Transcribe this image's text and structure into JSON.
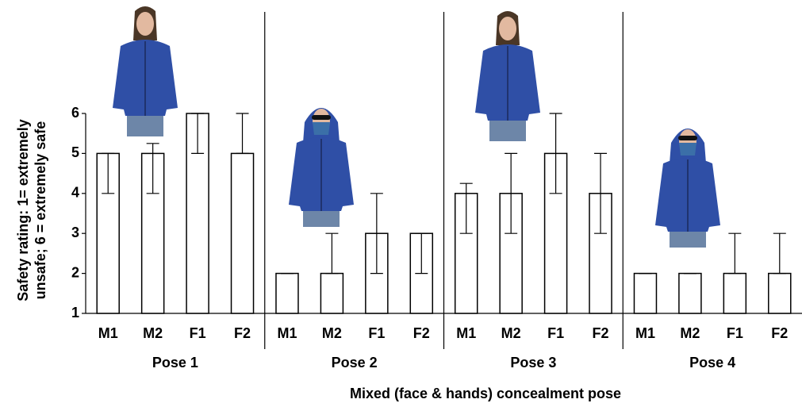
{
  "chart_data": {
    "type": "bar",
    "ylabel": [
      "Safety rating: 1= extremely",
      "unsafe; 6 = extremely safe"
    ],
    "xlabel": "Mixed (face & hands) concealment pose",
    "ylim": [
      1,
      6
    ],
    "yticks": [
      1,
      2,
      3,
      4,
      5,
      6
    ],
    "bar_color": "#ffffff",
    "groups": [
      {
        "name": "Pose 1",
        "categories": [
          "M1",
          "M2",
          "F1",
          "F2"
        ],
        "values": [
          5,
          5,
          6,
          5
        ],
        "error_low": [
          1,
          1,
          1,
          0
        ],
        "error_high": [
          0,
          0.25,
          0,
          1
        ]
      },
      {
        "name": "Pose 2",
        "categories": [
          "M1",
          "M2",
          "F1",
          "F2"
        ],
        "values": [
          2,
          2,
          3,
          3
        ],
        "error_low": [
          0,
          0,
          1,
          1
        ],
        "error_high": [
          0,
          1,
          1,
          0
        ]
      },
      {
        "name": "Pose 3",
        "categories": [
          "M1",
          "M2",
          "F1",
          "F2"
        ],
        "values": [
          4,
          4,
          5,
          4
        ],
        "error_low": [
          1,
          1,
          1,
          1
        ],
        "error_high": [
          0.25,
          1,
          1,
          1
        ]
      },
      {
        "name": "Pose 4",
        "categories": [
          "M1",
          "M2",
          "F1",
          "F2"
        ],
        "values": [
          2,
          2,
          2,
          2
        ],
        "error_low": [
          0,
          0,
          0,
          0
        ],
        "error_high": [
          0,
          0,
          1,
          1
        ]
      }
    ]
  }
}
